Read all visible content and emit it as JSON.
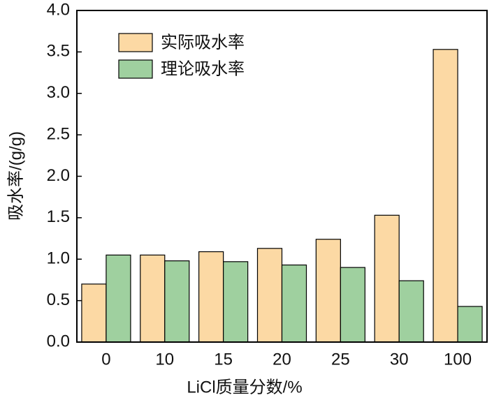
{
  "chart_data": {
    "type": "bar",
    "x_label": "LiCl质量分数/%",
    "y_label": "吸水率/(g/g)",
    "categories": [
      "0",
      "10",
      "15",
      "20",
      "25",
      "30",
      "100"
    ],
    "series": [
      {
        "name": "实际吸水率",
        "color": "#fcd9a4",
        "values": [
          0.7,
          1.05,
          1.09,
          1.13,
          1.24,
          1.53,
          3.53
        ]
      },
      {
        "name": "理论吸水率",
        "color": "#9fd09f",
        "values": [
          1.05,
          0.98,
          0.97,
          0.93,
          0.9,
          0.74,
          0.43
        ]
      }
    ],
    "ylim": [
      0,
      4
    ],
    "yticks": [
      {
        "value": 0,
        "label": "0.0"
      },
      {
        "value": 0.5,
        "label": "0.5"
      },
      {
        "value": 1,
        "label": "1.0"
      },
      {
        "value": 1.5,
        "label": "1.5"
      },
      {
        "value": 2,
        "label": "2.0"
      },
      {
        "value": 2.5,
        "label": "2.5"
      },
      {
        "value": 3,
        "label": "3.0"
      },
      {
        "value": 3.5,
        "label": "3.5"
      },
      {
        "value": 4,
        "label": "4.0"
      }
    ],
    "legend": "upper-left"
  }
}
